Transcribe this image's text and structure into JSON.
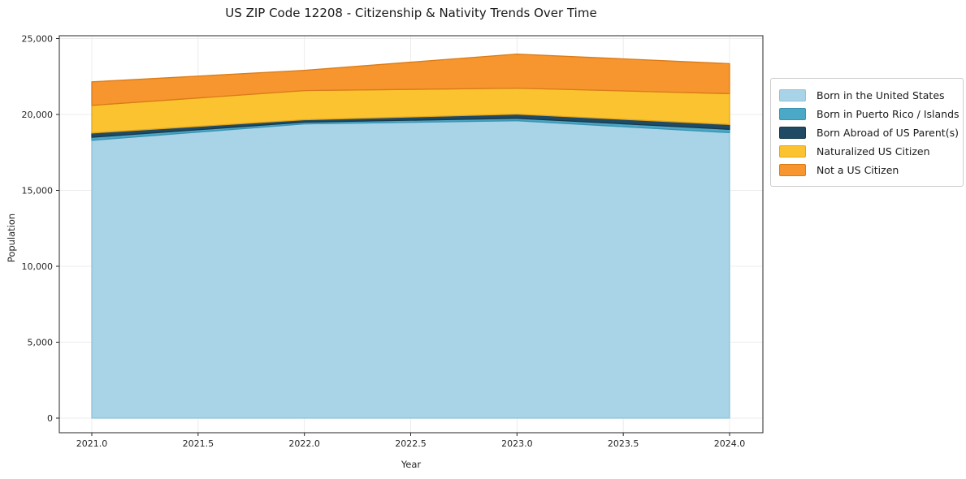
{
  "figure": {
    "title": "US ZIP Code 12208 - Citizenship & Nativity Trends Over Time",
    "xlabel": "Year",
    "ylabel": "Population"
  },
  "chart_data": {
    "type": "area",
    "stacked": true,
    "title": "US ZIP Code 12208 - Citizenship & Nativity Trends Over Time",
    "xlabel": "Year",
    "ylabel": "Population",
    "x": [
      2021,
      2022,
      2023,
      2024
    ],
    "series": [
      {
        "name": "Born in the United States",
        "color": "#a9d3e6",
        "edge_color": "#8ec3dc",
        "values": [
          18300,
          19380,
          19590,
          18800
        ]
      },
      {
        "name": "Born in Puerto Rico / Islands",
        "color": "#4ba8c6",
        "edge_color": "#3a93b0",
        "values": [
          200,
          110,
          160,
          220
        ]
      },
      {
        "name": "Born Abroad of US Parent(s)",
        "color": "#204a63",
        "edge_color": "#16384d",
        "values": [
          280,
          160,
          270,
          320
        ]
      },
      {
        "name": "Naturalized US Citizen",
        "color": "#fcc330",
        "edge_color": "#e0a51e",
        "values": [
          1820,
          1920,
          1710,
          2030
        ]
      },
      {
        "name": "Not a US Citizen",
        "color": "#f7952e",
        "edge_color": "#d97b17",
        "values": [
          1550,
          1340,
          2250,
          1980
        ]
      }
    ],
    "stack_totals": [
      22150,
      22910,
      23980,
      23350
    ],
    "xlim": [
      2020.85,
      2024.15
    ],
    "ylim": [
      0,
      25000
    ],
    "xticks": [
      2021.0,
      2021.5,
      2022.0,
      2022.5,
      2023.0,
      2023.5,
      2024.0
    ],
    "xtick_labels": [
      "2021.0",
      "2021.5",
      "2022.0",
      "2022.5",
      "2023.0",
      "2023.5",
      "2024.0"
    ],
    "yticks": [
      0,
      5000,
      10000,
      15000,
      20000,
      25000
    ],
    "ytick_labels": [
      "0",
      "5,000",
      "10,000",
      "15,000",
      "20,000",
      "25,000"
    ],
    "grid": true,
    "grid_color": "#ececec",
    "spine_color": "#262626",
    "legend_position": "right"
  }
}
